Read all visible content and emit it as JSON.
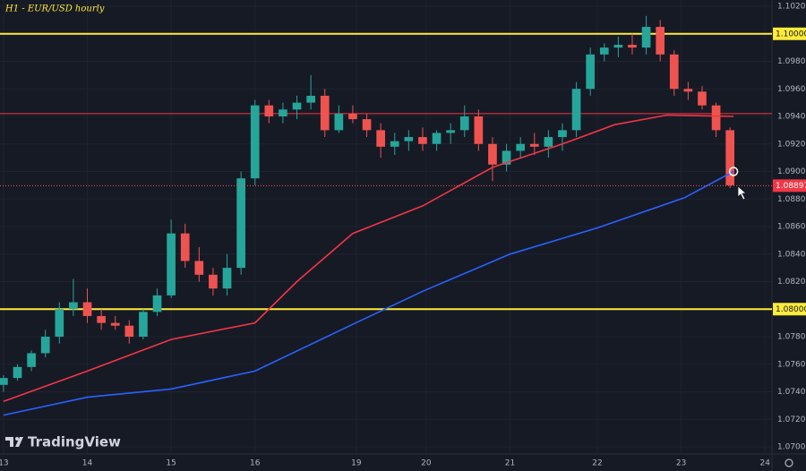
{
  "chart_data": {
    "type": "candlestick",
    "title": "H1 - EUR/USD hourly",
    "watermark": "TradingView",
    "x": [
      0,
      4,
      8,
      12,
      16,
      20,
      24,
      28,
      32,
      36,
      40,
      44,
      48,
      52,
      56,
      60,
      64,
      68,
      72,
      76,
      80,
      84,
      88,
      92,
      96,
      100,
      104,
      108,
      112,
      116,
      120,
      124,
      128,
      132,
      136,
      140,
      144,
      148,
      152,
      156,
      160,
      164,
      168,
      172,
      176,
      180,
      184,
      188,
      192,
      196,
      200,
      204,
      208
    ],
    "open": [
      1.0745,
      1.075,
      1.0758,
      1.0768,
      1.078,
      1.08,
      1.0805,
      1.0795,
      1.079,
      1.0788,
      1.078,
      1.0798,
      1.081,
      1.0855,
      1.0835,
      1.0825,
      1.0815,
      1.083,
      1.0895,
      1.0948,
      1.094,
      1.0945,
      1.095,
      1.0955,
      1.093,
      1.0942,
      1.0938,
      1.093,
      1.0918,
      1.0922,
      1.0925,
      1.092,
      1.0928,
      1.093,
      1.094,
      1.092,
      1.0905,
      1.0915,
      1.092,
      1.0918,
      1.0925,
      1.093,
      1.096,
      1.0985,
      1.099,
      1.0992,
      1.099,
      1.1005,
      1.0985,
      1.096,
      1.0958,
      1.0948,
      1.093
    ],
    "high": [
      1.0752,
      1.076,
      1.077,
      1.0785,
      1.0805,
      1.0822,
      1.0815,
      1.08,
      1.0795,
      1.0792,
      1.08,
      1.0815,
      1.0865,
      1.0862,
      1.0845,
      1.083,
      1.084,
      1.09,
      1.0952,
      1.0952,
      1.095,
      1.0955,
      1.097,
      1.096,
      1.0948,
      1.0948,
      1.0942,
      1.0935,
      1.0928,
      1.093,
      1.0932,
      1.093,
      1.0935,
      1.0948,
      1.0945,
      1.0925,
      1.092,
      1.0925,
      1.0928,
      1.093,
      1.0935,
      1.0965,
      1.099,
      1.0993,
      1.0998,
      1.1,
      1.1013,
      1.101,
      1.0988,
      1.0965,
      1.0962,
      1.095,
      1.0932
    ],
    "low": [
      1.074,
      1.0748,
      1.0755,
      1.0765,
      1.0775,
      1.0795,
      1.079,
      1.0785,
      1.0785,
      1.0775,
      1.0778,
      1.0795,
      1.0808,
      1.083,
      1.082,
      1.081,
      1.081,
      1.0825,
      1.089,
      1.0935,
      1.0935,
      1.0938,
      1.0945,
      1.0925,
      1.0928,
      1.0935,
      1.0925,
      1.091,
      1.0912,
      1.0915,
      1.0915,
      1.0915,
      1.092,
      1.0925,
      1.0915,
      1.0893,
      1.09,
      1.091,
      1.0912,
      1.091,
      1.0915,
      1.0925,
      1.0955,
      1.098,
      1.0983,
      1.0985,
      1.0985,
      1.098,
      1.0955,
      1.0952,
      1.0945,
      1.0925,
      1.0888
    ],
    "close": [
      1.075,
      1.0758,
      1.0768,
      1.078,
      1.08,
      1.0805,
      1.0795,
      1.079,
      1.0788,
      1.078,
      1.0798,
      1.081,
      1.0855,
      1.0835,
      1.0825,
      1.0815,
      1.083,
      1.0895,
      1.0948,
      1.094,
      1.0945,
      1.095,
      1.0955,
      1.093,
      1.0942,
      1.0938,
      1.093,
      1.0918,
      1.0922,
      1.0925,
      1.092,
      1.0928,
      1.093,
      1.094,
      1.092,
      1.0905,
      1.0915,
      1.092,
      1.0918,
      1.0925,
      1.093,
      1.096,
      1.0985,
      1.099,
      1.0992,
      1.099,
      1.1005,
      1.0985,
      1.096,
      1.0958,
      1.0948,
      1.093,
      1.089
    ],
    "up_color": "#26a69a",
    "down_color": "#ef5350",
    "moving_averages": [
      {
        "color": "#f23645",
        "x": [
          0,
          24,
          48,
          72,
          84,
          100,
          120,
          140,
          160,
          175,
          190,
          209
        ],
        "values": [
          1.0733,
          1.0755,
          1.0778,
          1.079,
          1.082,
          1.0855,
          1.0875,
          1.0903,
          1.092,
          1.0934,
          1.0941,
          1.094
        ]
      },
      {
        "color": "#2962ff",
        "x": [
          0,
          24,
          48,
          72,
          100,
          120,
          145,
          170,
          195,
          209
        ],
        "values": [
          1.0723,
          1.0736,
          1.0742,
          1.0755,
          1.0789,
          1.0813,
          1.084,
          1.0859,
          1.0881,
          1.09
        ]
      }
    ],
    "levels": [
      {
        "value": 1.1,
        "label": "1.10000",
        "color": "#ffeb3b"
      },
      {
        "value": 1.08,
        "label": "1.08000",
        "color": "#ffeb3b"
      },
      {
        "value": 1.0942,
        "color": "#f23645"
      }
    ],
    "last_price": {
      "value": 1.08897,
      "label": "1.08897"
    },
    "xlim": [
      -1,
      220
    ],
    "xticks": [
      {
        "value": 0,
        "label": "13"
      },
      {
        "value": 24,
        "label": "14"
      },
      {
        "value": 48,
        "label": "15"
      },
      {
        "value": 72,
        "label": "16"
      },
      {
        "value": 101,
        "label": "19"
      },
      {
        "value": 121,
        "label": "20"
      },
      {
        "value": 145,
        "label": "21"
      },
      {
        "value": 170,
        "label": "22"
      },
      {
        "value": 194,
        "label": "23"
      },
      {
        "value": 218,
        "label": "24"
      }
    ],
    "ylim": [
      1.07,
      1.102
    ],
    "yticks": [
      {
        "value": 1.07,
        "label": "1.07000"
      },
      {
        "value": 1.072,
        "label": "1.07200"
      },
      {
        "value": 1.074,
        "label": "1.07400"
      },
      {
        "value": 1.076,
        "label": "1.07600"
      },
      {
        "value": 1.078,
        "label": "1.07800"
      },
      {
        "value": 1.08,
        "label": "1.08000"
      },
      {
        "value": 1.082,
        "label": "1.08200"
      },
      {
        "value": 1.084,
        "label": "1.08400"
      },
      {
        "value": 1.086,
        "label": "1.08600"
      },
      {
        "value": 1.088,
        "label": "1.08800"
      },
      {
        "value": 1.09,
        "label": "1.09000"
      },
      {
        "value": 1.092,
        "label": "1.09200"
      },
      {
        "value": 1.094,
        "label": "1.09400"
      },
      {
        "value": 1.096,
        "label": "1.09600"
      },
      {
        "value": 1.098,
        "label": "1.09800"
      },
      {
        "value": 1.1,
        "label": "1.10000"
      },
      {
        "value": 1.102,
        "label": "1.10200"
      }
    ]
  }
}
